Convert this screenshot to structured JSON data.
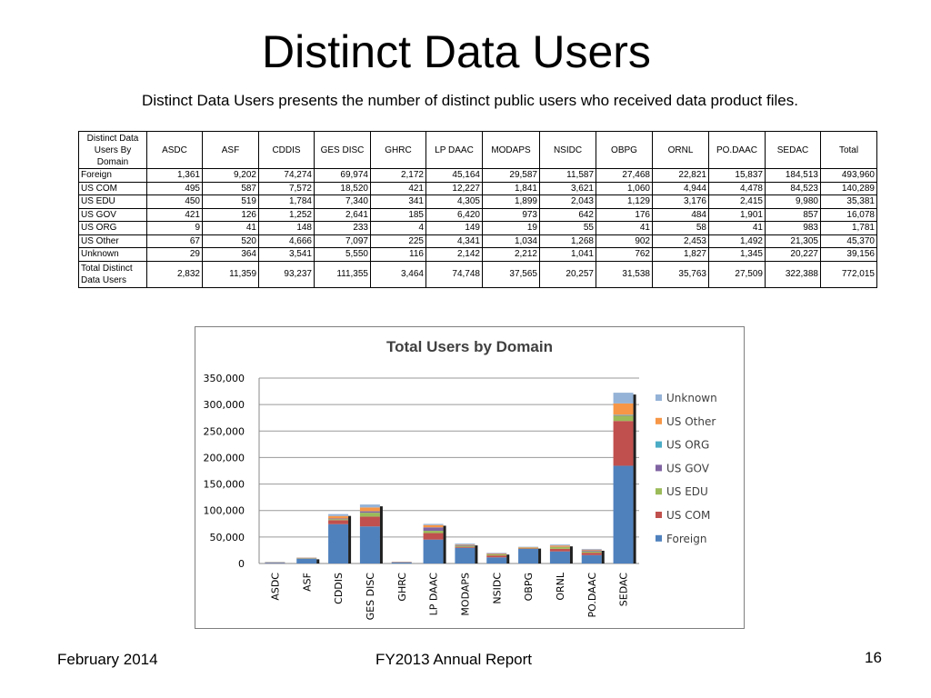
{
  "title": "Distinct Data Users",
  "subtitle": "Distinct Data Users presents the number of distinct public users who received data product files.",
  "table": {
    "corner_header": [
      "Distinct Data",
      "Users By",
      "Domain"
    ],
    "columns": [
      "ASDC",
      "ASF",
      "CDDIS",
      "GES DISC",
      "GHRC",
      "LP DAAC",
      "MODAPS",
      "NSIDC",
      "OBPG",
      "ORNL",
      "PO.DAAC",
      "SEDAC",
      "Total"
    ],
    "rows": [
      {
        "label": "Foreign",
        "values": [
          "1,361",
          "9,202",
          "74,274",
          "69,974",
          "2,172",
          "45,164",
          "29,587",
          "11,587",
          "27,468",
          "22,821",
          "15,837",
          "184,513",
          "493,960"
        ]
      },
      {
        "label": "US COM",
        "values": [
          "495",
          "587",
          "7,572",
          "18,520",
          "421",
          "12,227",
          "1,841",
          "3,621",
          "1,060",
          "4,944",
          "4,478",
          "84,523",
          "140,289"
        ]
      },
      {
        "label": "US EDU",
        "values": [
          "450",
          "519",
          "1,784",
          "7,340",
          "341",
          "4,305",
          "1,899",
          "2,043",
          "1,129",
          "3,176",
          "2,415",
          "9,980",
          "35,381"
        ]
      },
      {
        "label": "US GOV",
        "values": [
          "421",
          "126",
          "1,252",
          "2,641",
          "185",
          "6,420",
          "973",
          "642",
          "176",
          "484",
          "1,901",
          "857",
          "16,078"
        ]
      },
      {
        "label": "US ORG",
        "values": [
          "9",
          "41",
          "148",
          "233",
          "4",
          "149",
          "19",
          "55",
          "41",
          "58",
          "41",
          "983",
          "1,781"
        ]
      },
      {
        "label": "US Other",
        "values": [
          "67",
          "520",
          "4,666",
          "7,097",
          "225",
          "4,341",
          "1,034",
          "1,268",
          "902",
          "2,453",
          "1,492",
          "21,305",
          "45,370"
        ]
      },
      {
        "label": "Unknown",
        "values": [
          "29",
          "364",
          "3,541",
          "5,550",
          "116",
          "2,142",
          "2,212",
          "1,041",
          "762",
          "1,827",
          "1,345",
          "20,227",
          "39,156"
        ]
      }
    ],
    "total_row": {
      "label": [
        "Total Distinct",
        "Data Users"
      ],
      "values": [
        "2,832",
        "11,359",
        "93,237",
        "111,355",
        "3,464",
        "74,748",
        "37,565",
        "20,257",
        "31,538",
        "35,763",
        "27,509",
        "322,388",
        "772,015"
      ]
    }
  },
  "chart_data": {
    "type": "bar",
    "stacked": true,
    "title": "Total Users by Domain",
    "categories": [
      "ASDC",
      "ASF",
      "CDDIS",
      "GES DISC",
      "GHRC",
      "LP DAAC",
      "MODAPS",
      "NSIDC",
      "OBPG",
      "ORNL",
      "PO.DAAC",
      "SEDAC"
    ],
    "series": [
      {
        "name": "Foreign",
        "color": "#4f81bd",
        "values": [
          1361,
          9202,
          74274,
          69974,
          2172,
          45164,
          29587,
          11587,
          27468,
          22821,
          15837,
          184513
        ]
      },
      {
        "name": "US COM",
        "color": "#c0504d",
        "values": [
          495,
          587,
          7572,
          18520,
          421,
          12227,
          1841,
          3621,
          1060,
          4944,
          4478,
          84523
        ]
      },
      {
        "name": "US EDU",
        "color": "#9bbb59",
        "values": [
          450,
          519,
          1784,
          7340,
          341,
          4305,
          1899,
          2043,
          1129,
          3176,
          2415,
          9980
        ]
      },
      {
        "name": "US GOV",
        "color": "#8064a2",
        "values": [
          421,
          126,
          1252,
          2641,
          185,
          6420,
          973,
          642,
          176,
          484,
          1901,
          857
        ]
      },
      {
        "name": "US ORG",
        "color": "#4bacc6",
        "values": [
          9,
          41,
          148,
          233,
          4,
          149,
          19,
          55,
          41,
          58,
          41,
          983
        ]
      },
      {
        "name": "US Other",
        "color": "#f79646",
        "values": [
          67,
          520,
          4666,
          7097,
          225,
          4341,
          1034,
          1268,
          902,
          2453,
          1492,
          21305
        ]
      },
      {
        "name": "Unknown",
        "color": "#95b3d7",
        "values": [
          29,
          364,
          3541,
          5550,
          116,
          2142,
          2212,
          1041,
          762,
          1827,
          1345,
          20227
        ]
      }
    ],
    "y_ticks": [
      "350,000",
      "300,000",
      "250,000",
      "200,000",
      "150,000",
      "100,000",
      "50,000",
      "0"
    ],
    "y_tick_values": [
      350000,
      300000,
      250000,
      200000,
      150000,
      100000,
      50000,
      0
    ],
    "ylim": [
      0,
      350000
    ],
    "legend_position": "right",
    "legend_order": [
      "Unknown",
      "US Other",
      "US ORG",
      "US GOV",
      "US EDU",
      "US COM",
      "Foreign"
    ]
  },
  "footer": {
    "date": "February 2014",
    "report": "FY2013 Annual Report",
    "page": "16"
  }
}
